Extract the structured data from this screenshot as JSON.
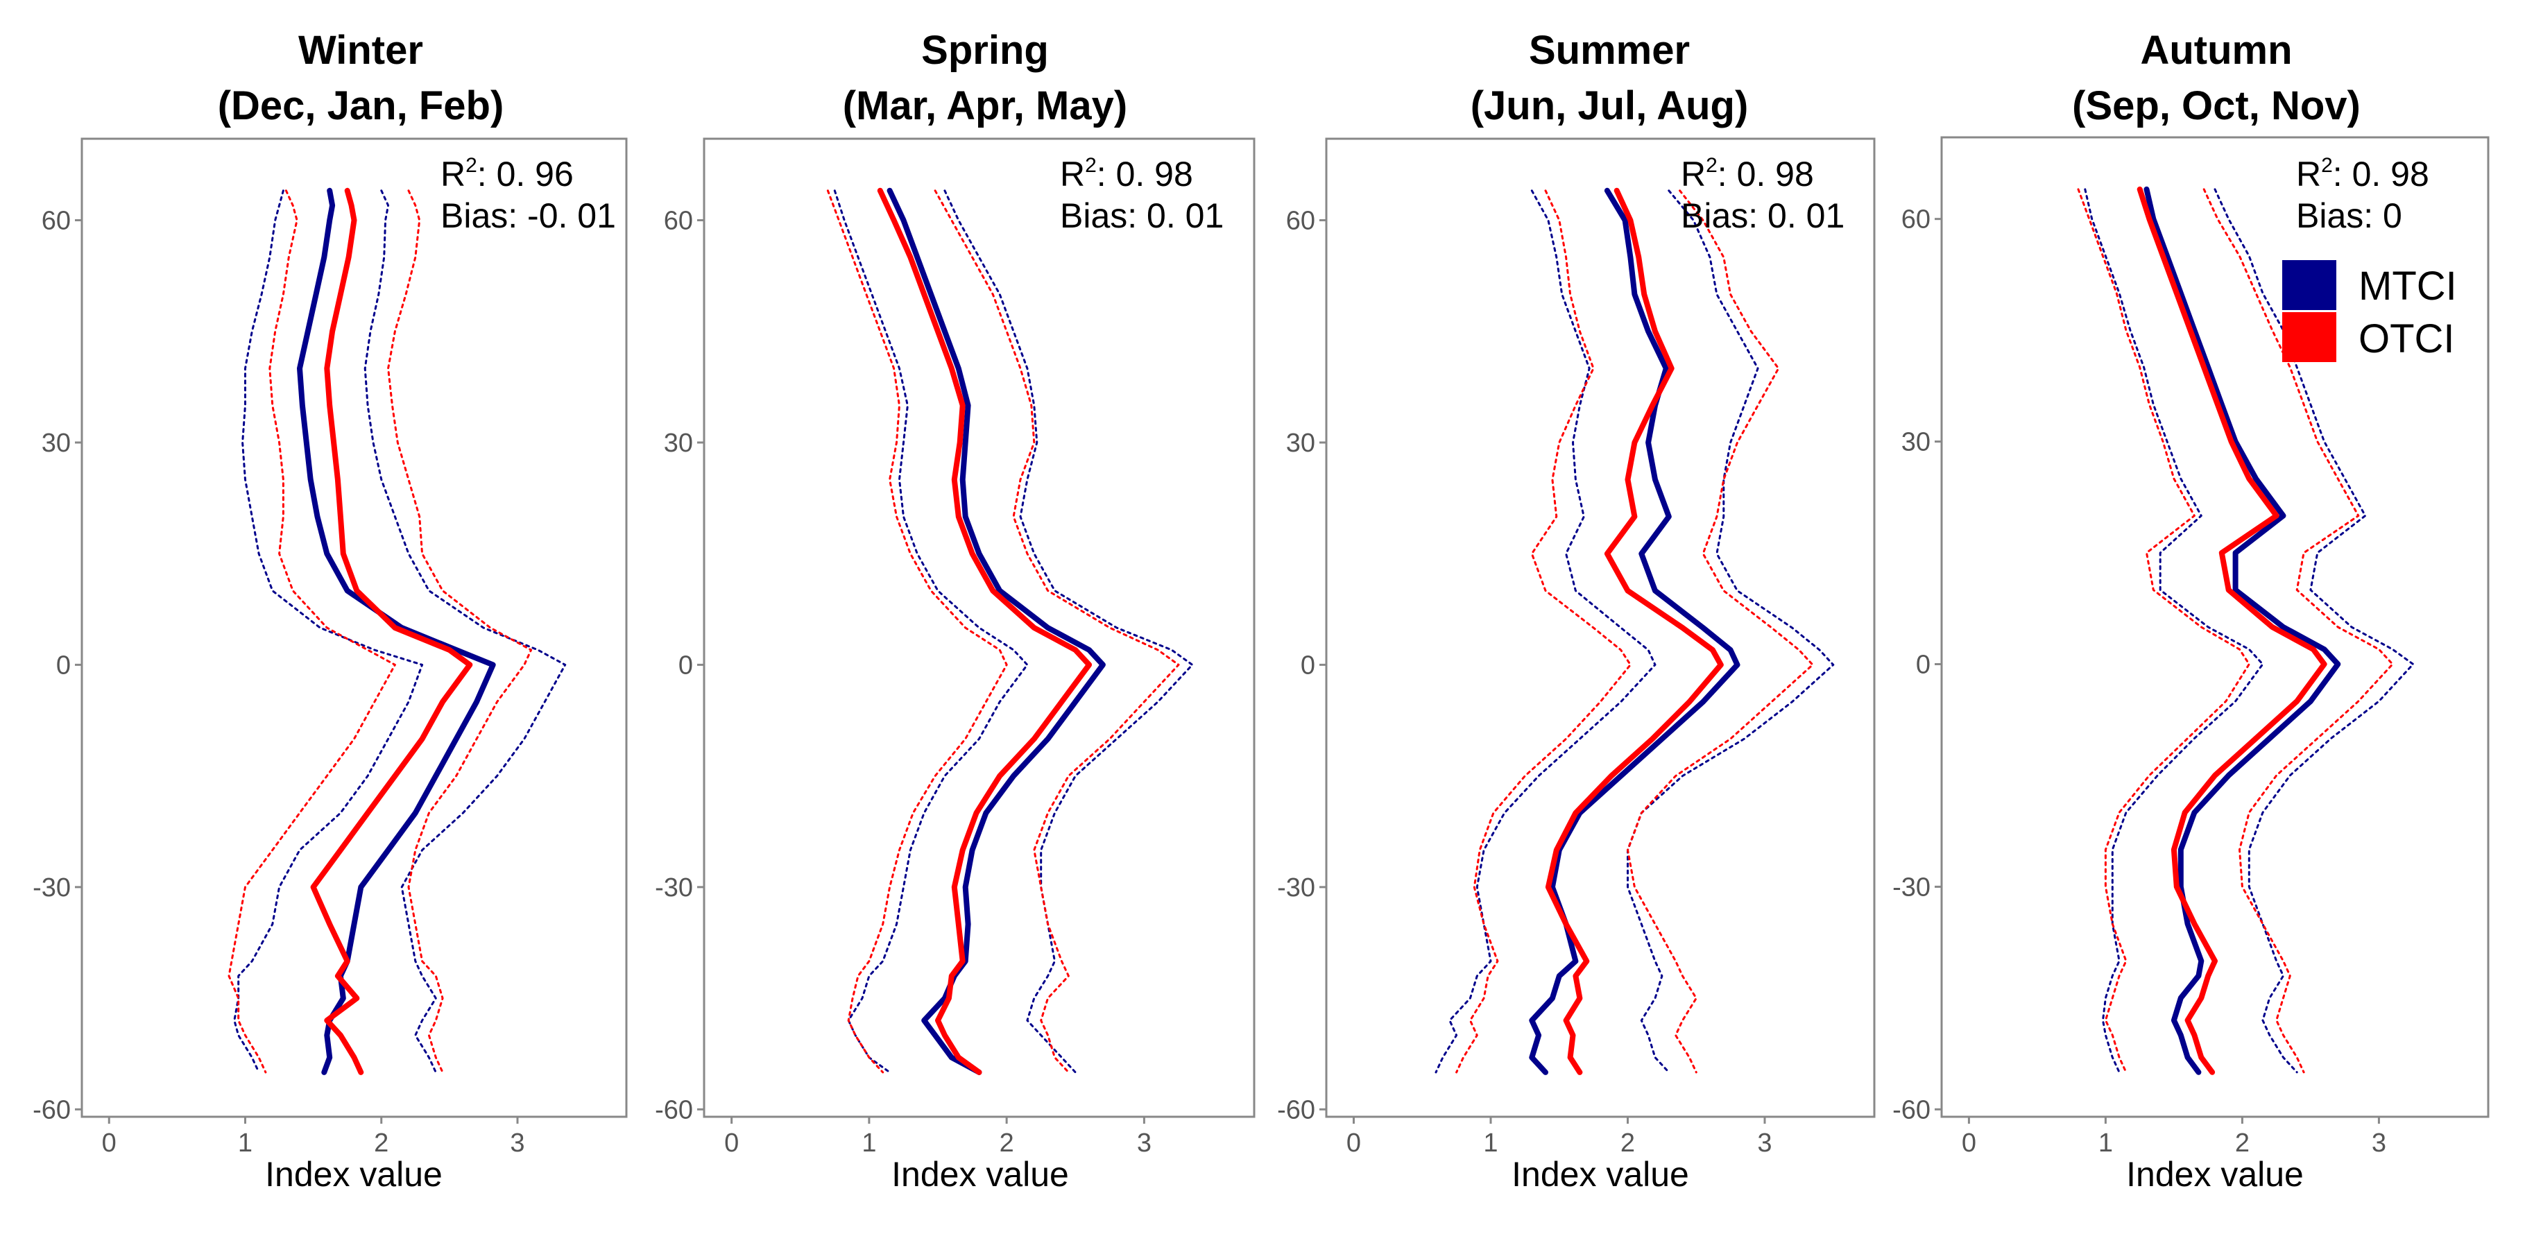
{
  "chart_data": [
    {
      "type": "line",
      "title_line1": "Winter",
      "title_line2": "(Dec, Jan, Feb)",
      "r2_label": "R",
      "r2_value": ": 0. 96",
      "bias_label": "Bias: -0. 01",
      "xlabel": "Index value",
      "ylabel": "",
      "xlim": [
        -0.2,
        3.8
      ],
      "ylim": [
        -61,
        71
      ],
      "xticks": [
        "0",
        "1",
        "2",
        "3"
      ],
      "yticks": [
        "-60",
        "-30",
        "0",
        "30",
        "60"
      ],
      "y": [
        64,
        62,
        60,
        55,
        50,
        45,
        40,
        35,
        30,
        25,
        20,
        15,
        10,
        5,
        2,
        0,
        -5,
        -10,
        -15,
        -20,
        -25,
        -30,
        -35,
        -40,
        -42,
        -45,
        -48,
        -50,
        -53,
        -55
      ],
      "series": [
        {
          "name": "MTCI",
          "values": [
            1.62,
            1.64,
            1.62,
            1.58,
            1.52,
            1.46,
            1.4,
            1.42,
            1.45,
            1.48,
            1.53,
            1.6,
            1.75,
            2.15,
            2.55,
            2.82,
            2.7,
            2.55,
            2.4,
            2.25,
            2.05,
            1.85,
            1.8,
            1.75,
            1.7,
            1.72,
            1.62,
            1.6,
            1.62,
            1.58
          ]
        },
        {
          "name": "MTCI_upper",
          "values": [
            2.0,
            2.05,
            2.03,
            2.02,
            1.98,
            1.92,
            1.88,
            1.9,
            1.94,
            2.0,
            2.1,
            2.2,
            2.35,
            2.75,
            3.15,
            3.35,
            3.2,
            3.05,
            2.85,
            2.6,
            2.3,
            2.15,
            2.2,
            2.25,
            2.3,
            2.4,
            2.3,
            2.25,
            2.35,
            2.4
          ]
        },
        {
          "name": "MTCI_lower",
          "values": [
            1.28,
            1.25,
            1.22,
            1.18,
            1.12,
            1.05,
            1.0,
            1.0,
            0.98,
            1.0,
            1.05,
            1.1,
            1.2,
            1.55,
            1.95,
            2.3,
            2.2,
            2.05,
            1.9,
            1.7,
            1.4,
            1.25,
            1.2,
            1.05,
            0.95,
            0.95,
            0.92,
            0.95,
            1.05,
            1.1
          ]
        },
        {
          "name": "OTCI",
          "values": [
            1.75,
            1.78,
            1.8,
            1.76,
            1.7,
            1.64,
            1.6,
            1.62,
            1.65,
            1.68,
            1.7,
            1.72,
            1.82,
            2.1,
            2.5,
            2.65,
            2.45,
            2.3,
            2.1,
            1.9,
            1.7,
            1.5,
            1.62,
            1.75,
            1.68,
            1.82,
            1.6,
            1.7,
            1.8,
            1.85
          ]
        },
        {
          "name": "OTCI_upper",
          "values": [
            2.2,
            2.25,
            2.28,
            2.25,
            2.18,
            2.1,
            2.05,
            2.08,
            2.12,
            2.2,
            2.28,
            2.3,
            2.45,
            2.8,
            3.1,
            3.05,
            2.85,
            2.7,
            2.55,
            2.35,
            2.25,
            2.2,
            2.25,
            2.3,
            2.4,
            2.45,
            2.4,
            2.35,
            2.4,
            2.45
          ]
        },
        {
          "name": "OTCI_lower",
          "values": [
            1.3,
            1.35,
            1.38,
            1.32,
            1.28,
            1.22,
            1.18,
            1.2,
            1.25,
            1.28,
            1.28,
            1.25,
            1.35,
            1.6,
            1.9,
            2.1,
            1.95,
            1.8,
            1.6,
            1.4,
            1.2,
            1.0,
            0.95,
            0.9,
            0.88,
            0.95,
            0.95,
            1.0,
            1.1,
            1.15
          ]
        }
      ]
    },
    {
      "type": "line",
      "title_line1": "Spring",
      "title_line2": "(Mar, Apr, May)",
      "r2_label": "R",
      "r2_value": ": 0. 98",
      "bias_label": "Bias: 0. 01",
      "xlabel": "Index value",
      "ylabel": "",
      "xlim": [
        -0.2,
        3.8
      ],
      "ylim": [
        -61,
        71
      ],
      "xticks": [
        "0",
        "1",
        "2",
        "3"
      ],
      "yticks": [
        "-60",
        "-30",
        "0",
        "30",
        "60"
      ],
      "y": [
        64,
        60,
        55,
        50,
        45,
        40,
        35,
        30,
        25,
        20,
        15,
        10,
        5,
        2,
        0,
        -5,
        -10,
        -15,
        -20,
        -25,
        -30,
        -35,
        -40,
        -42,
        -45,
        -48,
        -50,
        -53,
        -55
      ],
      "series": [
        {
          "name": "MTCI",
          "values": [
            1.15,
            1.25,
            1.35,
            1.45,
            1.55,
            1.65,
            1.72,
            1.7,
            1.68,
            1.7,
            1.8,
            1.95,
            2.3,
            2.6,
            2.7,
            2.5,
            2.3,
            2.05,
            1.85,
            1.75,
            1.7,
            1.72,
            1.7,
            1.62,
            1.55,
            1.4,
            1.48,
            1.6,
            1.8
          ]
        },
        {
          "name": "MTCI_upper",
          "values": [
            1.55,
            1.65,
            1.8,
            1.95,
            2.05,
            2.15,
            2.2,
            2.22,
            2.15,
            2.1,
            2.2,
            2.35,
            2.8,
            3.2,
            3.35,
            3.1,
            2.8,
            2.5,
            2.35,
            2.25,
            2.25,
            2.3,
            2.35,
            2.3,
            2.2,
            2.15,
            2.25,
            2.4,
            2.5
          ]
        },
        {
          "name": "MTCI_lower",
          "values": [
            0.75,
            0.82,
            0.92,
            1.02,
            1.12,
            1.22,
            1.28,
            1.25,
            1.22,
            1.25,
            1.35,
            1.5,
            1.8,
            2.05,
            2.15,
            1.95,
            1.8,
            1.55,
            1.4,
            1.3,
            1.25,
            1.2,
            1.1,
            1.0,
            0.95,
            0.85,
            0.9,
            1.0,
            1.15
          ]
        },
        {
          "name": "OTCI",
          "values": [
            1.08,
            1.18,
            1.3,
            1.4,
            1.5,
            1.6,
            1.68,
            1.66,
            1.62,
            1.65,
            1.75,
            1.9,
            2.2,
            2.5,
            2.6,
            2.4,
            2.2,
            1.95,
            1.78,
            1.68,
            1.62,
            1.65,
            1.68,
            1.6,
            1.58,
            1.5,
            1.55,
            1.65,
            1.8
          ]
        },
        {
          "name": "OTCI_upper",
          "values": [
            1.48,
            1.6,
            1.75,
            1.9,
            2.0,
            2.1,
            2.18,
            2.2,
            2.1,
            2.05,
            2.15,
            2.3,
            2.75,
            3.1,
            3.25,
            3.0,
            2.75,
            2.45,
            2.3,
            2.2,
            2.25,
            2.3,
            2.4,
            2.45,
            2.3,
            2.25,
            2.3,
            2.35,
            2.45
          ]
        },
        {
          "name": "OTCI_lower",
          "values": [
            0.7,
            0.78,
            0.88,
            0.98,
            1.08,
            1.18,
            1.22,
            1.2,
            1.15,
            1.2,
            1.3,
            1.45,
            1.7,
            1.95,
            2.0,
            1.85,
            1.7,
            1.48,
            1.32,
            1.22,
            1.15,
            1.1,
            1.0,
            0.92,
            0.88,
            0.85,
            0.9,
            1.0,
            1.1
          ]
        }
      ]
    },
    {
      "type": "line",
      "title_line1": "Summer",
      "title_line2": "(Jun, Jul, Aug)",
      "r2_label": "R",
      "r2_value": ": 0. 98",
      "bias_label": "Bias: 0. 01",
      "xlabel": "Index value",
      "ylabel": "",
      "xlim": [
        -0.2,
        3.8
      ],
      "ylim": [
        -61,
        71
      ],
      "xticks": [
        "0",
        "1",
        "2",
        "3"
      ],
      "yticks": [
        "-60",
        "-30",
        "0",
        "30",
        "60"
      ],
      "y": [
        64,
        60,
        55,
        50,
        45,
        40,
        35,
        30,
        25,
        20,
        15,
        10,
        5,
        2,
        0,
        -5,
        -10,
        -15,
        -20,
        -25,
        -30,
        -35,
        -40,
        -42,
        -45,
        -48,
        -50,
        -53,
        -55
      ],
      "series": [
        {
          "name": "MTCI",
          "values": [
            1.85,
            1.98,
            2.02,
            2.05,
            2.15,
            2.28,
            2.2,
            2.15,
            2.2,
            2.3,
            2.1,
            2.2,
            2.55,
            2.75,
            2.8,
            2.55,
            2.25,
            1.95,
            1.65,
            1.5,
            1.45,
            1.55,
            1.62,
            1.5,
            1.45,
            1.3,
            1.35,
            1.3,
            1.4
          ]
        },
        {
          "name": "MTCI_upper",
          "values": [
            2.3,
            2.48,
            2.6,
            2.65,
            2.8,
            2.95,
            2.85,
            2.75,
            2.7,
            2.7,
            2.65,
            2.8,
            3.2,
            3.4,
            3.5,
            3.2,
            2.85,
            2.4,
            2.1,
            2.0,
            2.0,
            2.1,
            2.2,
            2.25,
            2.2,
            2.1,
            2.15,
            2.2,
            2.3
          ]
        },
        {
          "name": "MTCI_lower",
          "values": [
            1.3,
            1.42,
            1.48,
            1.52,
            1.62,
            1.72,
            1.65,
            1.6,
            1.62,
            1.68,
            1.55,
            1.62,
            1.95,
            2.15,
            2.2,
            1.95,
            1.65,
            1.35,
            1.1,
            0.95,
            0.9,
            0.95,
            1.0,
            0.9,
            0.85,
            0.7,
            0.75,
            0.65,
            0.6
          ]
        },
        {
          "name": "OTCI",
          "values": [
            1.92,
            2.02,
            2.08,
            2.12,
            2.2,
            2.32,
            2.18,
            2.05,
            2.0,
            2.05,
            1.85,
            2.0,
            2.4,
            2.62,
            2.68,
            2.45,
            2.18,
            1.88,
            1.62,
            1.48,
            1.42,
            1.55,
            1.7,
            1.62,
            1.65,
            1.55,
            1.6,
            1.58,
            1.65
          ]
        },
        {
          "name": "OTCI_upper",
          "values": [
            2.38,
            2.55,
            2.7,
            2.75,
            2.9,
            3.1,
            2.95,
            2.8,
            2.7,
            2.65,
            2.55,
            2.7,
            3.05,
            3.25,
            3.35,
            3.05,
            2.75,
            2.35,
            2.1,
            2.0,
            2.05,
            2.2,
            2.35,
            2.4,
            2.5,
            2.4,
            2.35,
            2.45,
            2.5
          ]
        },
        {
          "name": "OTCI_lower",
          "values": [
            1.4,
            1.5,
            1.55,
            1.58,
            1.65,
            1.75,
            1.62,
            1.5,
            1.45,
            1.48,
            1.3,
            1.4,
            1.75,
            1.95,
            2.02,
            1.8,
            1.55,
            1.25,
            1.02,
            0.92,
            0.88,
            0.95,
            1.05,
            0.98,
            0.95,
            0.85,
            0.9,
            0.8,
            0.75
          ]
        }
      ]
    },
    {
      "type": "line",
      "title_line1": "Autumn",
      "title_line2": "(Sep, Oct, Nov)",
      "r2_label": "R",
      "r2_value": ": 0. 98",
      "bias_label": "Bias: 0",
      "xlabel": "Index value",
      "ylabel": "",
      "xlim": [
        -0.2,
        3.8
      ],
      "ylim": [
        -61,
        71
      ],
      "xticks": [
        "0",
        "1",
        "2",
        "3"
      ],
      "yticks": [
        "-60",
        "-30",
        "0",
        "30",
        "60"
      ],
      "legend": {
        "position": "top-right",
        "entries": [
          {
            "name": "MTCI",
            "color": "#00008B"
          },
          {
            "name": "OTCI",
            "color": "#FF0000"
          }
        ]
      },
      "y": [
        64,
        60,
        55,
        50,
        45,
        40,
        35,
        30,
        25,
        20,
        15,
        10,
        5,
        2,
        0,
        -5,
        -10,
        -15,
        -20,
        -25,
        -30,
        -35,
        -40,
        -42,
        -45,
        -48,
        -50,
        -53,
        -55
      ],
      "series": [
        {
          "name": "MTCI",
          "values": [
            1.3,
            1.35,
            1.45,
            1.55,
            1.65,
            1.75,
            1.85,
            1.95,
            2.1,
            2.3,
            1.95,
            1.95,
            2.3,
            2.6,
            2.7,
            2.5,
            2.2,
            1.9,
            1.65,
            1.55,
            1.55,
            1.6,
            1.7,
            1.68,
            1.55,
            1.5,
            1.55,
            1.6,
            1.68
          ]
        },
        {
          "name": "MTCI_upper",
          "values": [
            1.8,
            1.9,
            2.05,
            2.15,
            2.3,
            2.4,
            2.5,
            2.6,
            2.75,
            2.9,
            2.55,
            2.5,
            2.8,
            3.1,
            3.25,
            3.0,
            2.65,
            2.35,
            2.15,
            2.05,
            2.05,
            2.15,
            2.25,
            2.3,
            2.2,
            2.15,
            2.2,
            2.3,
            2.4
          ]
        },
        {
          "name": "MTCI_lower",
          "values": [
            0.85,
            0.9,
            1.0,
            1.1,
            1.18,
            1.28,
            1.35,
            1.45,
            1.55,
            1.7,
            1.4,
            1.4,
            1.75,
            2.05,
            2.15,
            1.95,
            1.65,
            1.38,
            1.15,
            1.05,
            1.05,
            1.05,
            1.1,
            1.05,
            1.0,
            0.98,
            1.0,
            1.05,
            1.1
          ]
        },
        {
          "name": "OTCI",
          "values": [
            1.25,
            1.32,
            1.42,
            1.52,
            1.62,
            1.72,
            1.82,
            1.92,
            2.05,
            2.25,
            1.85,
            1.9,
            2.22,
            2.52,
            2.6,
            2.4,
            2.1,
            1.8,
            1.58,
            1.5,
            1.52,
            1.65,
            1.8,
            1.75,
            1.7,
            1.6,
            1.65,
            1.7,
            1.78
          ]
        },
        {
          "name": "OTCI_upper",
          "values": [
            1.72,
            1.82,
            1.98,
            2.1,
            2.22,
            2.35,
            2.45,
            2.55,
            2.7,
            2.85,
            2.45,
            2.4,
            2.7,
            3.0,
            3.1,
            2.85,
            2.55,
            2.25,
            2.05,
            1.98,
            2.0,
            2.15,
            2.3,
            2.35,
            2.3,
            2.25,
            2.3,
            2.4,
            2.45
          ]
        },
        {
          "name": "OTCI_lower",
          "values": [
            0.8,
            0.88,
            0.98,
            1.08,
            1.15,
            1.25,
            1.32,
            1.42,
            1.5,
            1.65,
            1.3,
            1.35,
            1.7,
            1.98,
            2.05,
            1.88,
            1.6,
            1.32,
            1.1,
            1.0,
            1.0,
            1.05,
            1.15,
            1.1,
            1.05,
            1.0,
            1.05,
            1.1,
            1.15
          ]
        }
      ]
    }
  ],
  "colors": {
    "MTCI": "#00008B",
    "OTCI": "#FF0000",
    "axis_border": "#888888",
    "tick_text": "#555555"
  },
  "legend": {
    "mtci_label": "MTCI",
    "otci_label": "OTCI"
  }
}
